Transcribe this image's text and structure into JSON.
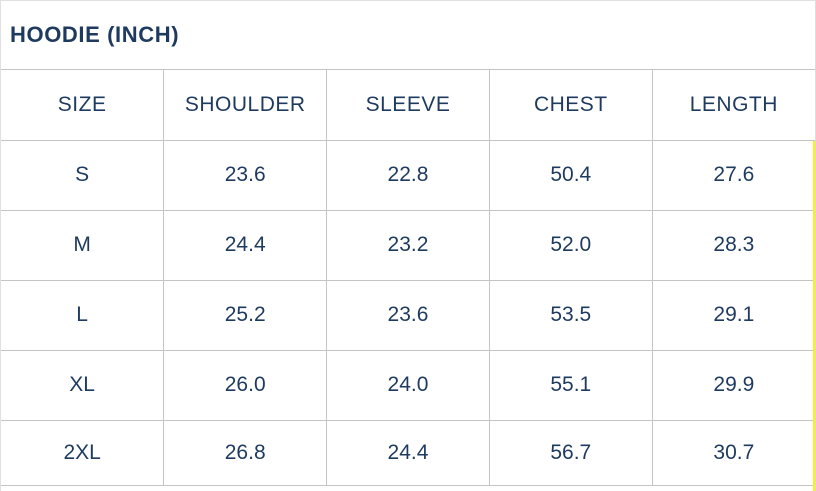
{
  "title": "HOODIE (INCH)",
  "table": {
    "columns": [
      "SIZE",
      "SHOULDER",
      "SLEEVE",
      "CHEST",
      "LENGTH"
    ],
    "rows": [
      [
        "S",
        "23.6",
        "22.8",
        "50.4",
        "27.6"
      ],
      [
        "M",
        "24.4",
        "23.2",
        "52.0",
        "28.3"
      ],
      [
        "L",
        "25.2",
        "23.6",
        "53.5",
        "29.1"
      ],
      [
        "XL",
        "26.0",
        "24.0",
        "55.1",
        "29.9"
      ],
      [
        "2XL",
        "26.8",
        "24.4",
        "56.7",
        "30.7"
      ]
    ]
  },
  "colors": {
    "text": "#1e3a5f",
    "inner_border": "#c4c4c4",
    "outer_border": "#e0e0e0",
    "highlight_strip": "#fff500",
    "background": "#ffffff"
  },
  "chart_data": {
    "type": "table",
    "title": "HOODIE (INCH)",
    "unit": "inch",
    "columns": [
      "SIZE",
      "SHOULDER",
      "SLEEVE",
      "CHEST",
      "LENGTH"
    ],
    "rows": [
      {
        "size": "S",
        "shoulder": 23.6,
        "sleeve": 22.8,
        "chest": 50.4,
        "length": 27.6
      },
      {
        "size": "M",
        "shoulder": 24.4,
        "sleeve": 23.2,
        "chest": 52.0,
        "length": 28.3
      },
      {
        "size": "L",
        "shoulder": 25.2,
        "sleeve": 23.6,
        "chest": 53.5,
        "length": 29.1
      },
      {
        "size": "XL",
        "shoulder": 26.0,
        "sleeve": 24.0,
        "chest": 55.1,
        "length": 29.9
      },
      {
        "size": "2XL",
        "shoulder": 26.8,
        "sleeve": 24.4,
        "chest": 56.7,
        "length": 30.7
      }
    ]
  }
}
